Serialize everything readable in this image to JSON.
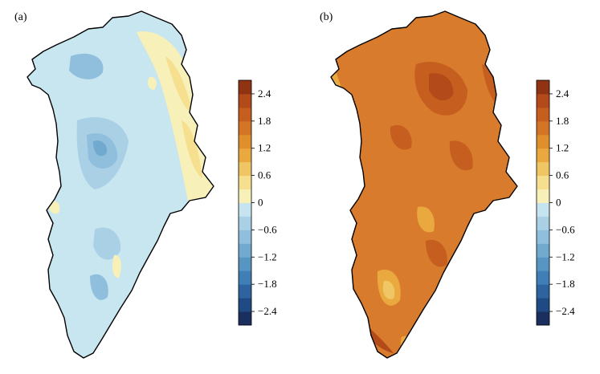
{
  "panels": [
    {
      "label": "(a)",
      "colorbar_ticks": [
        "2.4",
        "1.8",
        "1.2",
        "0.6",
        "0",
        "−0.6",
        "−1.2",
        "−1.8",
        "−2.4"
      ]
    },
    {
      "label": "(b)",
      "colorbar_ticks": [
        "2.4",
        "1.8",
        "1.2",
        "0.6",
        "0",
        "−0.6",
        "−1.2",
        "−1.8",
        "−2.4"
      ]
    }
  ],
  "colorbar": {
    "range": [
      -2.7,
      2.7
    ],
    "levels": 18,
    "colors_low_to_high": [
      "#1a2f5e",
      "#1f4a83",
      "#2f63a0",
      "#3f7fb6",
      "#5795c3",
      "#72a9cf",
      "#8fbfdc",
      "#a9d0e4",
      "#c6e4ef",
      "#f7f0b8",
      "#f6df8e",
      "#f0c664",
      "#e9a93e",
      "#e08f2d",
      "#d37426",
      "#c55e1e",
      "#b24a19",
      "#8f3313"
    ]
  },
  "maps": {
    "a": {
      "base_color": "#c8e6f0",
      "dominant_range": "mostly -0.6 to 0, with 0 to 0.6 along the east coast"
    },
    "b": {
      "base_color": "#d97b2c",
      "dominant_range": "mostly 1.2 to 2.4"
    }
  }
}
